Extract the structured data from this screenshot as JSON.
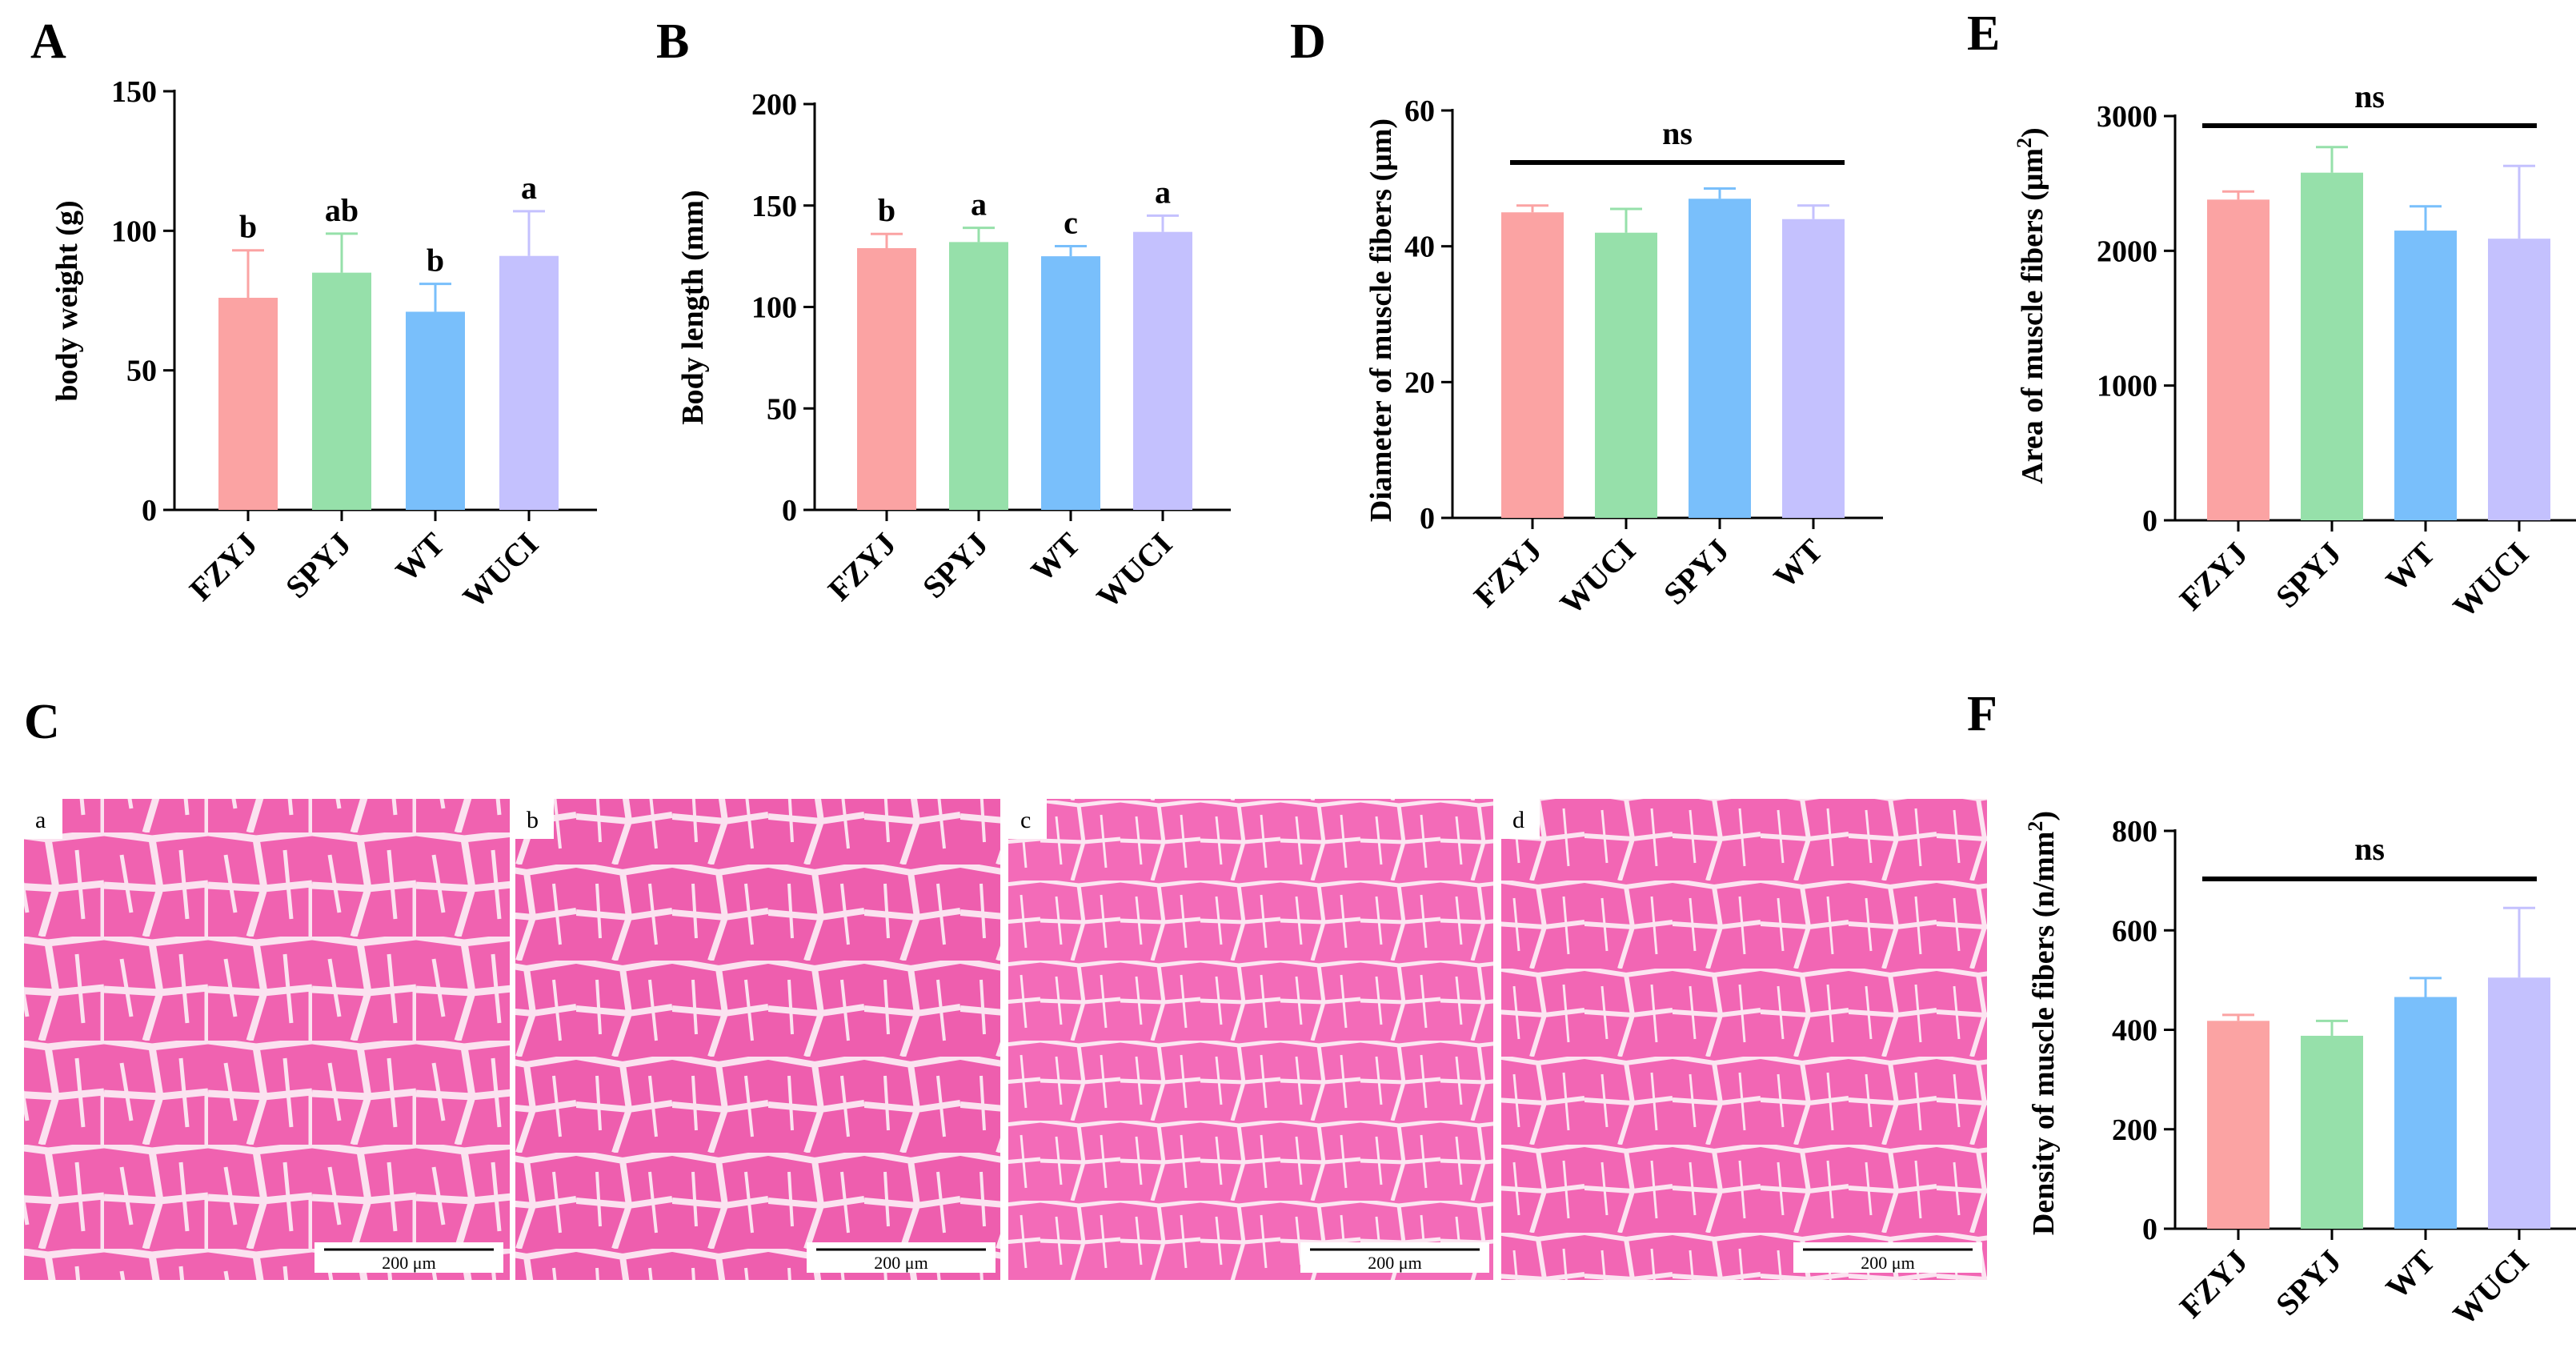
{
  "figure": {
    "panel_c": {
      "letter": "C",
      "images": [
        {
          "label": "a",
          "scale_bar": "200 μm",
          "tone": "#f062b0",
          "bg_line": "#f6c6e2"
        },
        {
          "label": "b",
          "scale_bar": "200 μm",
          "tone": "#ee5eae",
          "bg_line": "#f6c6e2"
        },
        {
          "label": "c",
          "scale_bar": "200 μm",
          "tone": "#f36bb8",
          "bg_line": "#f8d2e8"
        },
        {
          "label": "d",
          "scale_bar": "200 μm",
          "tone": "#f266b4",
          "bg_line": "#f8cfe6"
        }
      ]
    }
  },
  "chart_data": [
    {
      "panel": "A",
      "type": "bar",
      "categories": [
        "FZYJ",
        "SPYJ",
        "WT",
        "WUCI"
      ],
      "values": [
        76,
        85,
        71,
        91
      ],
      "errors": [
        17,
        14,
        10,
        16
      ],
      "colors": [
        "#fba3a3",
        "#96e0aa",
        "#79bffb",
        "#c4c1fe"
      ],
      "sig_labels": [
        "b",
        "ab",
        "b",
        "a"
      ],
      "ylabel": "body weight (g)",
      "ylim": [
        0,
        150
      ],
      "yticks": [
        0,
        50,
        100,
        150
      ]
    },
    {
      "panel": "B",
      "type": "bar",
      "categories": [
        "FZYJ",
        "SPYJ",
        "WT",
        "WUCI"
      ],
      "values": [
        129,
        132,
        125,
        137
      ],
      "errors": [
        7,
        7,
        5,
        8
      ],
      "colors": [
        "#fba3a3",
        "#96e0aa",
        "#79bffb",
        "#c4c1fe"
      ],
      "sig_labels": [
        "b",
        "a",
        "c",
        "a"
      ],
      "ylabel": "Body length (mm)",
      "ylim": [
        0,
        200
      ],
      "yticks": [
        0,
        50,
        100,
        150,
        200
      ]
    },
    {
      "panel": "D",
      "type": "bar",
      "categories": [
        "FZYJ",
        "WUCI",
        "SPYJ",
        "WT"
      ],
      "values": [
        45,
        42,
        47,
        44
      ],
      "errors": [
        1,
        3.5,
        1.5,
        2
      ],
      "colors": [
        "#fba3a3",
        "#96e0aa",
        "#79bffb",
        "#c4c1fe"
      ],
      "ns_label": "ns",
      "ylabel": "Diameter of muscle fibers (μm)",
      "ylim": [
        0,
        60
      ],
      "yticks": [
        0,
        20,
        40,
        60
      ]
    },
    {
      "panel": "E",
      "type": "bar",
      "categories": [
        "FZYJ",
        "SPYJ",
        "WT",
        "WUCI"
      ],
      "values": [
        2380,
        2580,
        2150,
        2090
      ],
      "errors": [
        60,
        190,
        180,
        540
      ],
      "colors": [
        "#fba3a3",
        "#96e0aa",
        "#79bffb",
        "#c4c1fe"
      ],
      "ns_label": "ns",
      "ylabel": "Area of muscle fibers (μm",
      "ylabel_sup": "2",
      "ylabel_end": ")",
      "ylim": [
        0,
        3000
      ],
      "yticks": [
        0,
        1000,
        2000,
        3000
      ]
    },
    {
      "panel": "F",
      "type": "bar",
      "categories": [
        "FZYJ",
        "SPYJ",
        "WT",
        "WUCI"
      ],
      "values": [
        418,
        388,
        466,
        505
      ],
      "errors": [
        12,
        30,
        38,
        140
      ],
      "colors": [
        "#fba3a3",
        "#96e0aa",
        "#79bffb",
        "#c4c1fe"
      ],
      "ns_label": "ns",
      "ylabel": "Density of muscle fibers (n/mm",
      "ylabel_sup": "2",
      "ylabel_end": ")",
      "ylim": [
        0,
        800
      ],
      "yticks": [
        0,
        200,
        400,
        600,
        800
      ]
    }
  ]
}
